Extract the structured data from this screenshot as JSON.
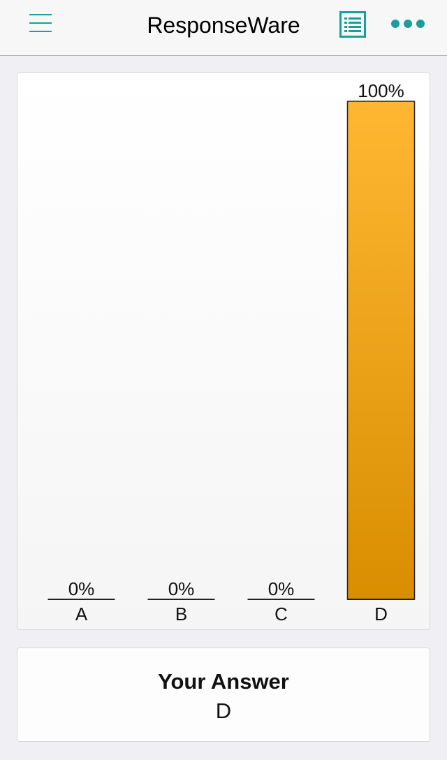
{
  "nav": {
    "title": "ResponseWare",
    "accent_color": "#1a9e9a",
    "left_icon": "hamburger-menu-icon",
    "right_icons": [
      "list-icon",
      "more-dots-icon"
    ]
  },
  "chart_data": {
    "type": "bar",
    "categories": [
      "A",
      "B",
      "C",
      "D"
    ],
    "values": [
      0,
      0,
      0,
      100
    ],
    "value_labels": [
      "0%",
      "0%",
      "0%",
      "100%"
    ],
    "ylim": [
      0,
      100
    ],
    "bar_color": "#f2a81f",
    "grid": false,
    "title": "",
    "xlabel": "",
    "ylabel": ""
  },
  "answer": {
    "label": "Your Answer",
    "value": "D"
  }
}
